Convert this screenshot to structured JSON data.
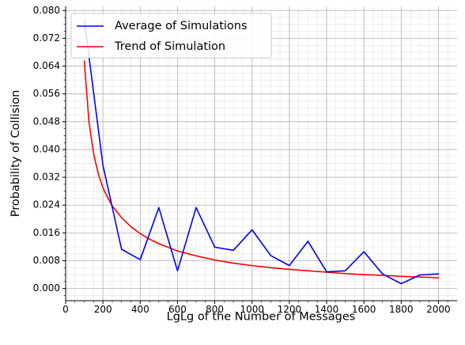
{
  "chart_data": {
    "type": "line",
    "xlabel": "LgLg of the Number of Messages",
    "ylabel": "Probability of Collision",
    "xlim": [
      0,
      2100
    ],
    "ylim": [
      -0.0035,
      0.0812
    ],
    "grid": true,
    "minor_grid": true,
    "legend_position": "top-left",
    "x_ticks": [
      0,
      200,
      400,
      600,
      800,
      1000,
      1200,
      1400,
      1600,
      1800,
      2000
    ],
    "x_tick_labels": [
      "0",
      "200",
      "400",
      "600",
      "800",
      "1000",
      "1200",
      "1400",
      "1600",
      "1800",
      "2000"
    ],
    "y_ticks": [
      0,
      0.008,
      0.016,
      0.024,
      0.032,
      0.04,
      0.048,
      0.056,
      0.064,
      0.072,
      0.08
    ],
    "y_tick_labels": [
      "0.000",
      "0.008",
      "0.016",
      "0.024",
      "0.032",
      "0.040",
      "0.048",
      "0.056",
      "0.064",
      "0.072",
      "0.080"
    ],
    "series": [
      {
        "name": "Average of Simulations",
        "color": "#0000ff",
        "x": [
          100,
          200,
          300,
          400,
          500,
          600,
          700,
          800,
          900,
          1000,
          1100,
          1200,
          1300,
          1400,
          1500,
          1600,
          1700,
          1800,
          1900,
          2000
        ],
        "y": [
          0.0773,
          0.0355,
          0.0113,
          0.0083,
          0.0233,
          0.0051,
          0.0233,
          0.0119,
          0.011,
          0.0169,
          0.0095,
          0.0066,
          0.0136,
          0.0048,
          0.0051,
          0.0106,
          0.0042,
          0.0014,
          0.0039,
          0.0042
        ]
      },
      {
        "name": "Trend of Simulation",
        "color": "#ff0000",
        "x": [
          100,
          125,
          150,
          175,
          200,
          225,
          250,
          300,
          350,
          400,
          450,
          500,
          600,
          700,
          800,
          900,
          1000,
          1100,
          1200,
          1300,
          1400,
          1500,
          1600,
          1700,
          1800,
          1900,
          2000
        ],
        "y": [
          0.0655,
          0.048,
          0.0388,
          0.033,
          0.029,
          0.0262,
          0.0238,
          0.0204,
          0.0178,
          0.0158,
          0.0142,
          0.0129,
          0.0108,
          0.0094,
          0.0082,
          0.0073,
          0.0066,
          0.006,
          0.0055,
          0.0051,
          0.0047,
          0.0043,
          0.004,
          0.0038,
          0.0035,
          0.0033,
          0.0031
        ]
      }
    ]
  }
}
